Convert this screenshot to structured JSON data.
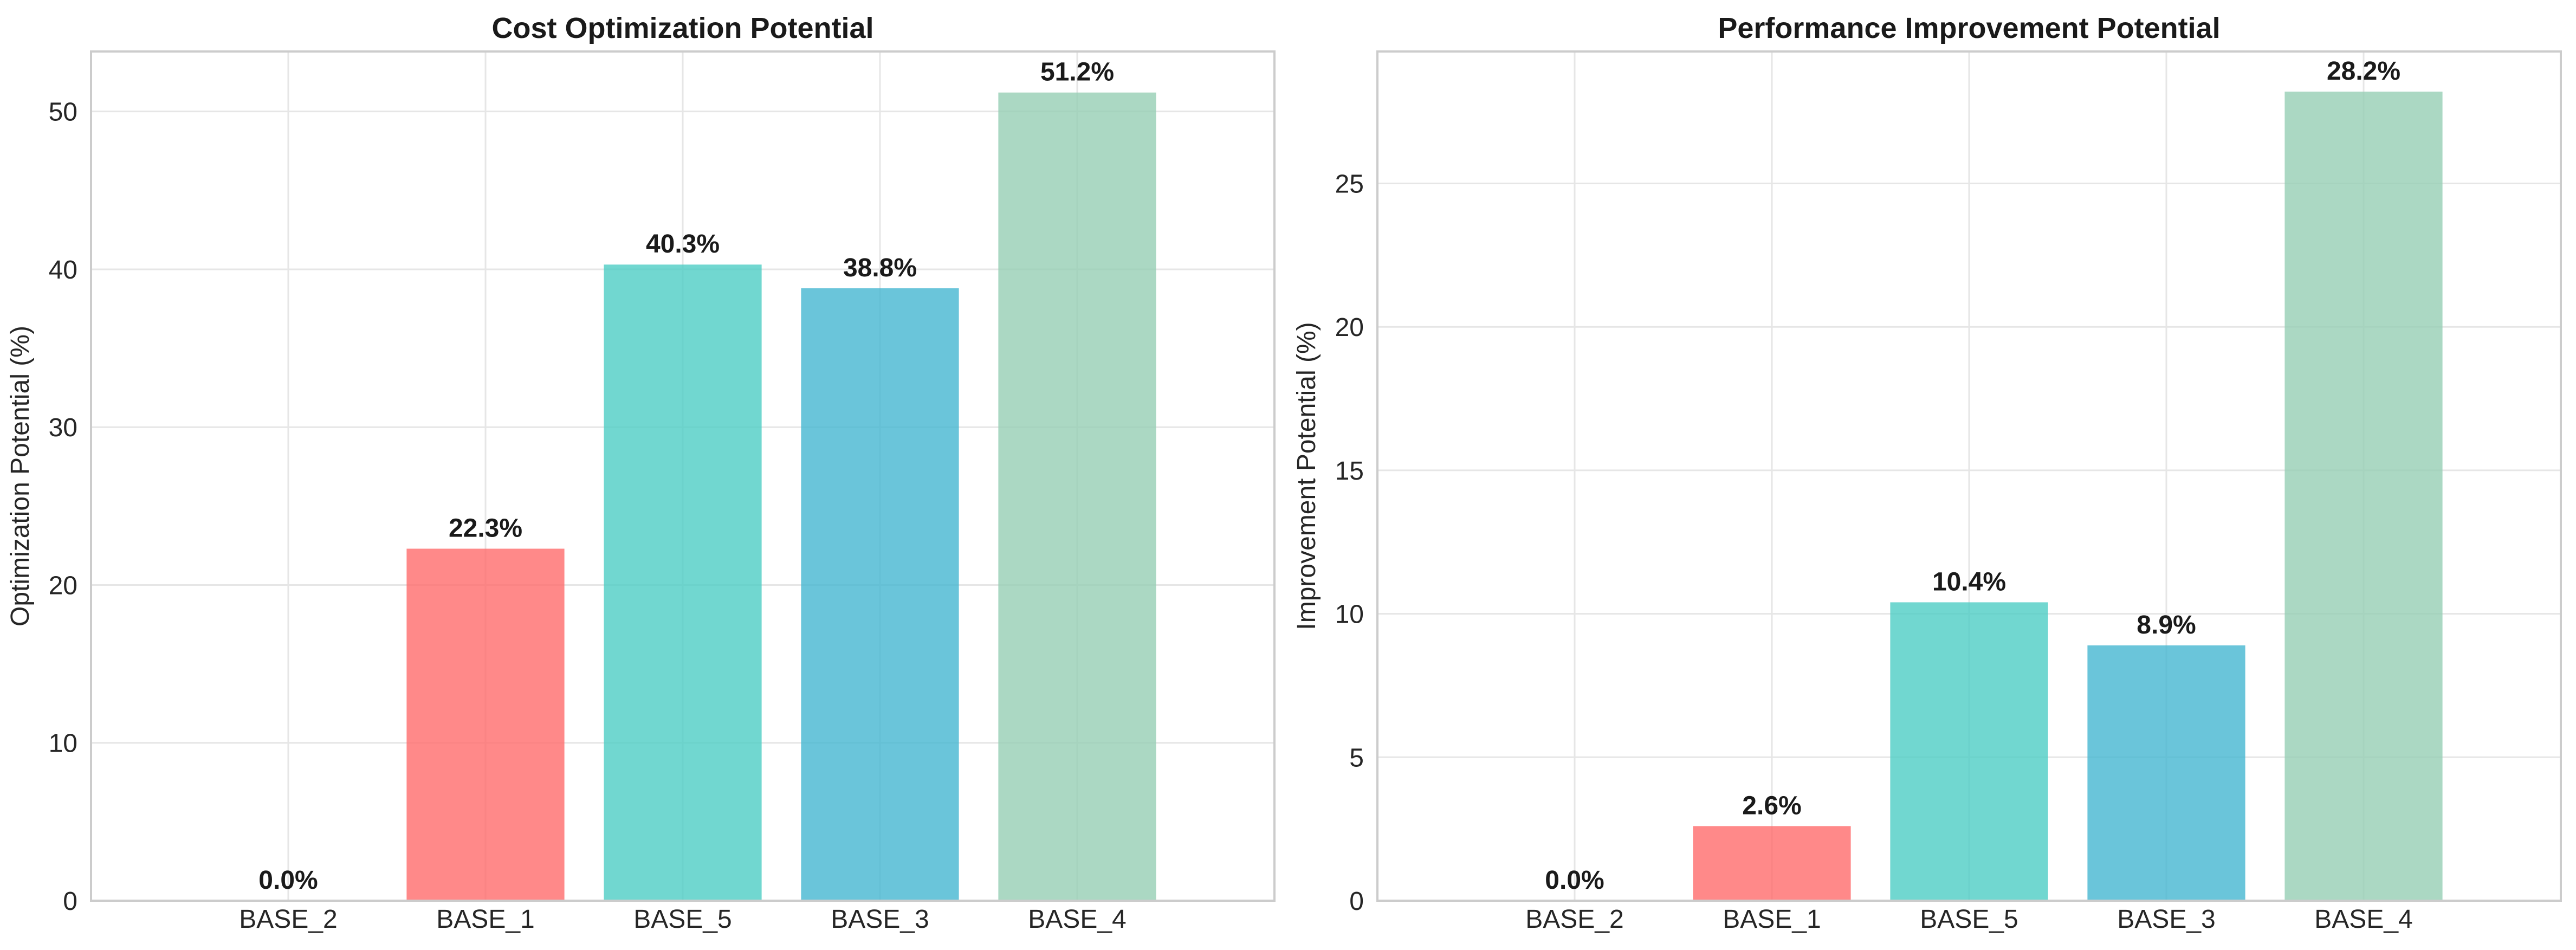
{
  "chart_data": [
    {
      "type": "bar",
      "title": "Cost Optimization Potential",
      "xlabel": "",
      "ylabel": "Optimization Potential (%)",
      "categories": [
        "BASE_2",
        "BASE_1",
        "BASE_5",
        "BASE_3",
        "BASE_4"
      ],
      "values": [
        0.0,
        22.3,
        40.3,
        38.8,
        51.2
      ],
      "value_labels": [
        "0.0%",
        "22.3%",
        "40.3%",
        "38.8%",
        "51.2%"
      ],
      "colors": [
        "#4ecdc4",
        "#ff6b6b",
        "#4ecdc4",
        "#45b7d1",
        "#96ceb4"
      ],
      "ylim": [
        0,
        53.8
      ],
      "yticks": [
        0,
        10,
        20,
        30,
        40,
        50
      ],
      "grid": true
    },
    {
      "type": "bar",
      "title": "Performance Improvement Potential",
      "xlabel": "",
      "ylabel": "Improvement Potential (%)",
      "categories": [
        "BASE_2",
        "BASE_1",
        "BASE_5",
        "BASE_3",
        "BASE_4"
      ],
      "values": [
        0.0,
        2.6,
        10.4,
        8.9,
        28.2
      ],
      "value_labels": [
        "0.0%",
        "2.6%",
        "10.4%",
        "8.9%",
        "28.2%"
      ],
      "colors": [
        "#4ecdc4",
        "#ff6b6b",
        "#4ecdc4",
        "#45b7d1",
        "#96ceb4"
      ],
      "ylim": [
        0,
        29.6
      ],
      "yticks": [
        0,
        5,
        10,
        15,
        20,
        25
      ],
      "grid": true
    }
  ]
}
